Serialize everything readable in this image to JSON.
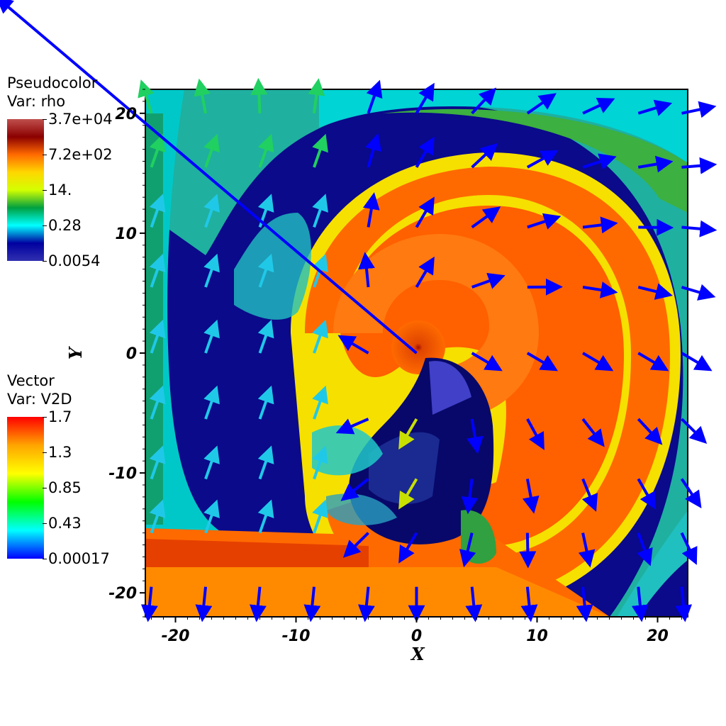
{
  "chart_data": {
    "type": "heatmap",
    "description_kind": "vector-field",
    "xlabel": "X",
    "ylabel": "Y",
    "xlim": [
      -22.5,
      22.5
    ],
    "ylim": [
      -22,
      22
    ],
    "xticks": [
      -20,
      -10,
      0,
      10,
      20
    ],
    "yticks": [
      -20,
      -10,
      0,
      10,
      20
    ],
    "xtick_labels": [
      "-20",
      "-10",
      "0",
      "10",
      "20"
    ],
    "ytick_labels": [
      "-20",
      "-10",
      "0",
      "10",
      "20"
    ],
    "pseudocolor": {
      "title": "Pseudocolor",
      "var": "Var: rho",
      "tick_labels": [
        "3.7e+04",
        "7.2e+02",
        "14.",
        "0.28",
        "0.0054"
      ],
      "colors": [
        "#c0504d",
        "#8b0000",
        "#ff6a00",
        "#ffd700",
        "#d4ff00",
        "#00a040",
        "#00ffff",
        "#0000a0",
        "#3030b0"
      ]
    },
    "vector": {
      "title": "Vector",
      "var": "Var: V2D",
      "tick_labels": [
        "1.7",
        "1.3",
        "0.85",
        "0.43",
        "0.00017"
      ],
      "colors": [
        "#ff0000",
        "#ffa500",
        "#ffff00",
        "#00ff00",
        "#00ffff",
        "#0000ff"
      ]
    },
    "arrow_grid": {
      "x": [
        -22,
        -17.5,
        -13,
        -8.5,
        -4,
        0,
        4.6,
        9.2,
        13.8,
        18.4,
        22
      ],
      "y": [
        20,
        15.5,
        10.5,
        5.5,
        0,
        -5.5,
        -10.5,
        -15,
        -19.5
      ]
    }
  }
}
